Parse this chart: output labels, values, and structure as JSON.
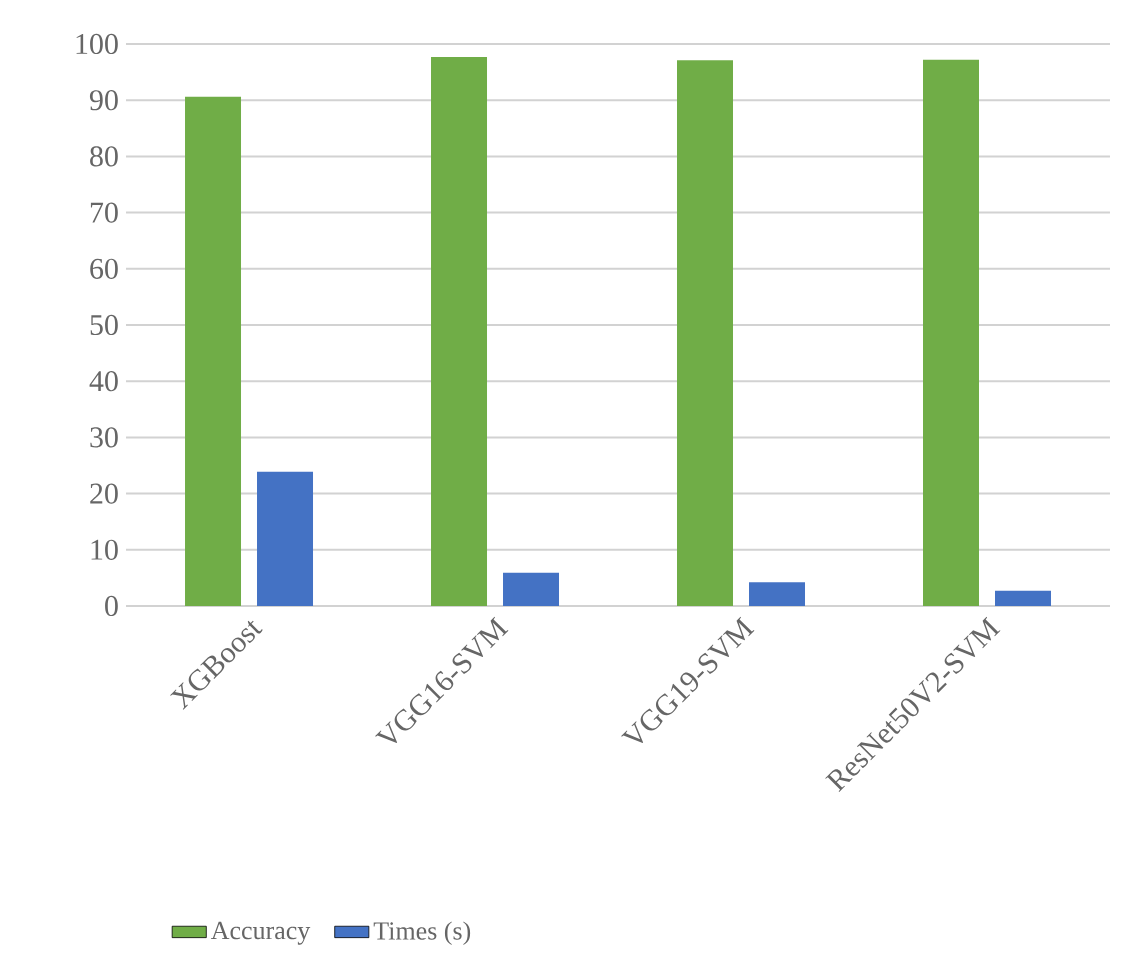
{
  "chart_data": {
    "type": "bar",
    "categories": [
      "XGBoost",
      "VGG16-SVM",
      "VGG19-SVM",
      "ResNet50V2-SVM"
    ],
    "series": [
      {
        "name": "Accuracy",
        "color": "#70ad47",
        "values": [
          90.6,
          97.7,
          97.1,
          97.2
        ]
      },
      {
        "name": "Times (s)",
        "color": "#4472c4",
        "values": [
          23.9,
          5.9,
          4.2,
          2.7
        ]
      }
    ],
    "ylim": [
      0,
      100
    ],
    "yticks": [
      0,
      10,
      20,
      30,
      40,
      50,
      60,
      70,
      80,
      90,
      100
    ],
    "grid": "y",
    "legend": "bottom"
  }
}
